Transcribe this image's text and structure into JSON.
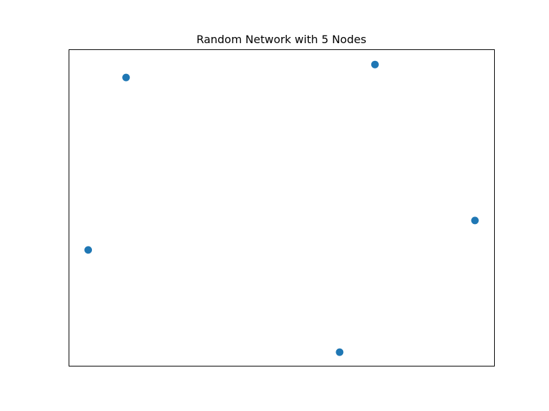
{
  "chart_data": {
    "type": "scatter",
    "title": "Random Network with 5 Nodes",
    "xlabel": "",
    "ylabel": "",
    "axes_visible": false,
    "grid": false,
    "xlim": [
      0,
      1
    ],
    "ylim": [
      0,
      1
    ],
    "series": [
      {
        "color": "#1f77b4",
        "points": [
          {
            "x": 0.135,
            "y": 0.911
          },
          {
            "x": 0.72,
            "y": 0.952
          },
          {
            "x": 0.955,
            "y": 0.459
          },
          {
            "x": 0.046,
            "y": 0.366
          },
          {
            "x": 0.637,
            "y": 0.043
          }
        ]
      }
    ]
  }
}
